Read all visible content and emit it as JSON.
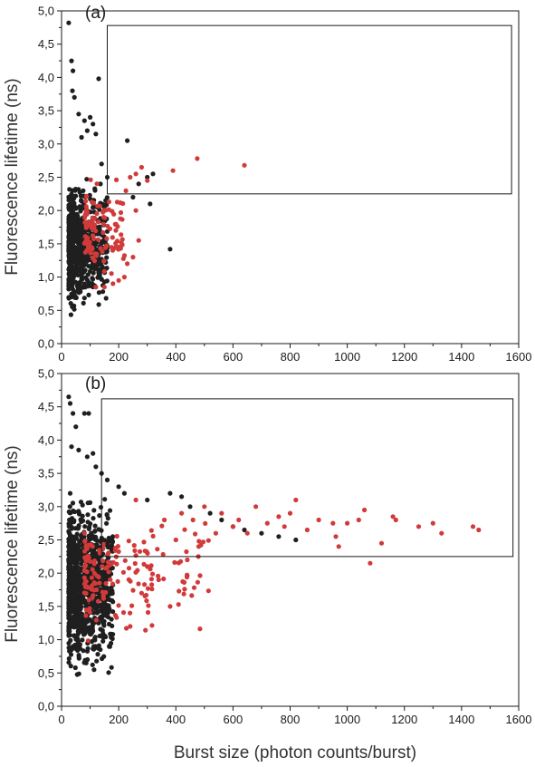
{
  "figure": {
    "ylabel": "Fluorescence lifetime (ns)",
    "xlabel": "Burst size (photon counts/burst)"
  },
  "colors": {
    "black_series": "#1f1f1f",
    "red_series": "#d23a3a",
    "axis": "#1a1a1a"
  },
  "chart_data": [
    {
      "type": "scatter",
      "panel_label": "(a)",
      "xlim": [
        0,
        1600
      ],
      "ylim": [
        0.0,
        5.0
      ],
      "xticks": [
        0,
        200,
        400,
        600,
        800,
        1000,
        1200,
        1400,
        1600
      ],
      "yticks": [
        "0,0",
        "0,5",
        "1,0",
        "1,5",
        "2,0",
        "2,5",
        "3,0",
        "3,5",
        "4,0",
        "4,5",
        "5,0"
      ],
      "grid": false,
      "legend": "none",
      "selection_box": {
        "x": [
          160,
          1575
        ],
        "y": [
          2.25,
          4.78
        ]
      },
      "series": [
        {
          "color": "black",
          "cloud": {
            "x_range": [
              25,
              160
            ],
            "y_range": [
              0.3,
              2.7
            ],
            "n": 650
          },
          "points": [
            [
              25,
              4.82
            ],
            [
              35,
              4.25
            ],
            [
              40,
              4.1
            ],
            [
              38,
              3.8
            ],
            [
              45,
              3.7
            ],
            [
              130,
              3.98
            ],
            [
              60,
              3.45
            ],
            [
              80,
              3.35
            ],
            [
              100,
              3.4
            ],
            [
              90,
              3.2
            ],
            [
              110,
              3.3
            ],
            [
              70,
              3.1
            ],
            [
              120,
              3.15
            ],
            [
              230,
              3.05
            ],
            [
              300,
              2.5
            ],
            [
              320,
              2.55
            ],
            [
              270,
              2.4
            ],
            [
              250,
              2.2
            ],
            [
              310,
              2.1
            ],
            [
              380,
              1.42
            ],
            [
              140,
              2.7
            ],
            [
              160,
              2.5
            ]
          ]
        },
        {
          "color": "red",
          "cloud": {
            "x_range": [
              80,
              230
            ],
            "y_range": [
              0.9,
              2.6
            ],
            "n": 110
          },
          "points": [
            [
              640,
              2.68
            ],
            [
              475,
              2.78
            ],
            [
              390,
              2.6
            ],
            [
              280,
              2.65
            ],
            [
              260,
              2.55
            ],
            [
              240,
              2.5
            ],
            [
              300,
              2.45
            ],
            [
              270,
              1.55
            ],
            [
              250,
              1.3
            ],
            [
              230,
              1.2
            ],
            [
              220,
              1.0
            ],
            [
              200,
              0.95
            ],
            [
              180,
              0.9
            ],
            [
              150,
              0.85
            ],
            [
              120,
              0.85
            ],
            [
              260,
              2.0
            ]
          ]
        }
      ]
    },
    {
      "type": "scatter",
      "panel_label": "(b)",
      "xlim": [
        0,
        1600
      ],
      "ylim": [
        0.0,
        5.0
      ],
      "xticks": [
        0,
        200,
        400,
        600,
        800,
        1000,
        1200,
        1400,
        1600
      ],
      "yticks": [
        "0,0",
        "0,5",
        "1,0",
        "1,5",
        "2,0",
        "2,5",
        "3,0",
        "3,5",
        "4,0",
        "4,5",
        "5,0"
      ],
      "grid": false,
      "legend": "none",
      "selection_box": {
        "x": [
          140,
          1580
        ],
        "y": [
          2.25,
          4.62
        ]
      },
      "series": [
        {
          "color": "black",
          "cloud": {
            "x_range": [
              25,
              180
            ],
            "y_range": [
              0.4,
              3.3
            ],
            "n": 1100
          },
          "points": [
            [
              25,
              4.65
            ],
            [
              30,
              4.55
            ],
            [
              40,
              4.4
            ],
            [
              50,
              4.2
            ],
            [
              80,
              4.4
            ],
            [
              95,
              4.4
            ],
            [
              35,
              3.9
            ],
            [
              60,
              3.85
            ],
            [
              90,
              3.75
            ],
            [
              110,
              3.8
            ],
            [
              120,
              3.6
            ],
            [
              140,
              3.5
            ],
            [
              160,
              3.4
            ],
            [
              200,
              3.3
            ],
            [
              220,
              3.2
            ],
            [
              300,
              3.1
            ],
            [
              380,
              3.2
            ],
            [
              420,
              3.15
            ],
            [
              450,
              3.0
            ],
            [
              520,
              2.9
            ],
            [
              560,
              2.8
            ],
            [
              600,
              2.7
            ],
            [
              640,
              2.65
            ],
            [
              700,
              2.6
            ],
            [
              760,
              2.55
            ],
            [
              820,
              2.5
            ]
          ]
        },
        {
          "color": "red",
          "cloud": {
            "x_range": [
              80,
              520
            ],
            "y_range": [
              0.9,
              3.0
            ],
            "n": 160
          },
          "points": [
            [
              1460,
              2.65
            ],
            [
              1440,
              2.7
            ],
            [
              1330,
              2.6
            ],
            [
              1300,
              2.75
            ],
            [
              1250,
              2.7
            ],
            [
              1170,
              2.8
            ],
            [
              1160,
              2.85
            ],
            [
              1120,
              2.45
            ],
            [
              1080,
              2.15
            ],
            [
              1060,
              2.95
            ],
            [
              1040,
              2.8
            ],
            [
              1000,
              2.75
            ],
            [
              970,
              2.4
            ],
            [
              960,
              2.55
            ],
            [
              950,
              2.75
            ],
            [
              900,
              2.8
            ],
            [
              860,
              2.65
            ],
            [
              820,
              3.1
            ],
            [
              800,
              2.9
            ],
            [
              780,
              2.7
            ],
            [
              760,
              2.85
            ],
            [
              720,
              2.75
            ],
            [
              680,
              3.0
            ],
            [
              650,
              2.6
            ],
            [
              620,
              2.8
            ],
            [
              600,
              2.7
            ],
            [
              560,
              2.9
            ],
            [
              540,
              2.6
            ],
            [
              500,
              3.0
            ],
            [
              480,
              2.4
            ],
            [
              460,
              2.8
            ],
            [
              440,
              2.2
            ],
            [
              420,
              2.9
            ],
            [
              400,
              2.5
            ],
            [
              380,
              1.5
            ],
            [
              360,
              2.8
            ],
            [
              340,
              1.9
            ],
            [
              300,
              2.1
            ],
            [
              280,
              1.7
            ],
            [
              260,
              3.1
            ],
            [
              240,
              1.2
            ]
          ]
        }
      ]
    }
  ]
}
